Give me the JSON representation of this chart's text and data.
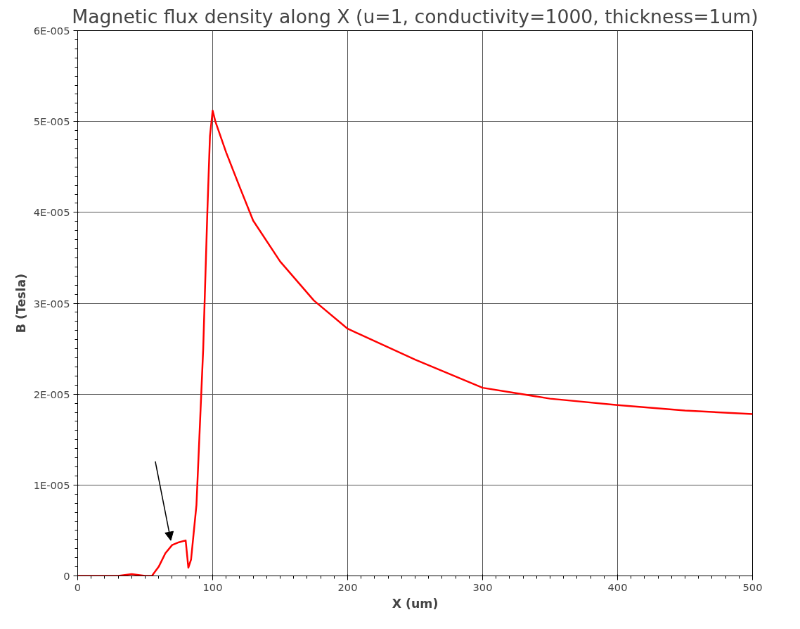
{
  "chart_data": {
    "type": "line",
    "title": "Magnetic flux density along X (u=1, conductivity=1000, thickness=1um)",
    "xlabel": "X (um)",
    "ylabel": "B (Tesla)",
    "x": [
      0,
      30,
      40,
      50,
      55,
      60,
      65,
      70,
      75,
      80,
      82,
      84,
      88,
      93,
      96,
      98,
      100,
      102,
      110,
      120,
      130,
      150,
      175,
      200,
      250,
      300,
      350,
      400,
      450,
      500
    ],
    "series": [
      {
        "color": "#ff0000",
        "values": [
          0,
          0,
          2e-07,
          0,
          0,
          1e-06,
          2.5e-06,
          3.4e-06,
          3.7e-06,
          3.9e-06,
          9e-07,
          1.8e-06,
          7.8e-06,
          2.5e-05,
          3.97e-05,
          4.84e-05,
          5.12e-05,
          5e-05,
          4.66e-05,
          4.28e-05,
          3.91e-05,
          3.46e-05,
          3.03e-05,
          2.72e-05,
          2.38e-05,
          2.07e-05,
          1.95e-05,
          1.88e-05,
          1.82e-05,
          1.78e-05
        ]
      }
    ],
    "xlim": [
      0,
      500
    ],
    "xticks": [
      0,
      100,
      200,
      300,
      400,
      500
    ],
    "ylim": [
      0,
      6e-05
    ],
    "yticks": [
      0,
      {
        "value": 1e-05,
        "label": "1E-005"
      },
      {
        "value": 2e-05,
        "label": "2E-005"
      },
      {
        "value": 3e-05,
        "label": "3E-005"
      },
      {
        "value": 4e-05,
        "label": "4E-005"
      },
      {
        "value": 5e-05,
        "label": "5E-005"
      },
      {
        "value": 6e-05,
        "label": "6E-005"
      }
    ],
    "grid": true,
    "marker": "none",
    "line_style": "solid"
  }
}
